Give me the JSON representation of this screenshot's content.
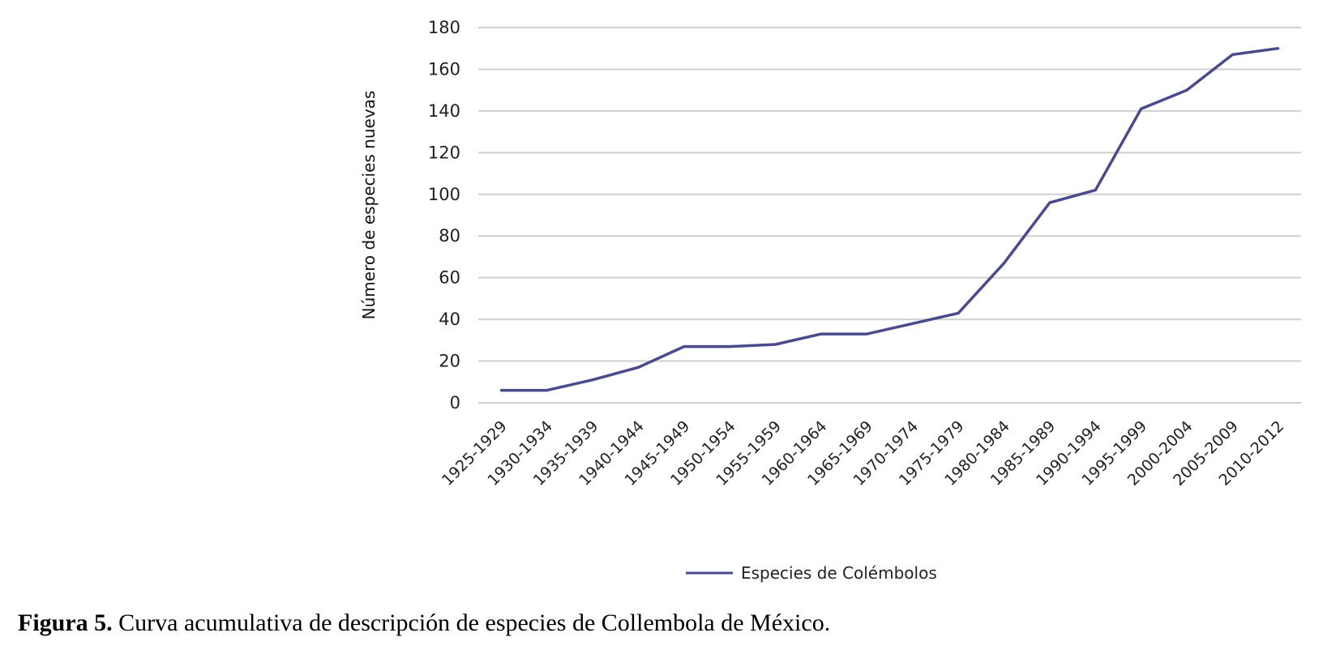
{
  "chart_data": {
    "type": "line",
    "categories": [
      "1925-1929",
      "1930-1934",
      "1935-1939",
      "1940-1944",
      "1945-1949",
      "1950-1954",
      "1955-1959",
      "1960-1964",
      "1965-1969",
      "1970-1974",
      "1975-1979",
      "1980-1984",
      "1985-1989",
      "1990-1994",
      "1995-1999",
      "2000-2004",
      "2005-2009",
      "2010-2012"
    ],
    "series": [
      {
        "name": "Especies de Colémbolos",
        "values": [
          6,
          6,
          11,
          17,
          27,
          27,
          28,
          33,
          33,
          38,
          43,
          67,
          96,
          102,
          141,
          150,
          167,
          170
        ]
      }
    ],
    "ylabel": "Número de especies nuevas",
    "xlabel": "",
    "ylim": [
      0,
      180
    ],
    "yticks": [
      0,
      20,
      40,
      60,
      80,
      100,
      120,
      140,
      160,
      180
    ],
    "grid": "horizontal",
    "legend_position": "bottom",
    "line_color": "#4a4a8c"
  },
  "caption": {
    "label": "Figura 5.",
    "text": " Curva acumulativa de descripción de especies de Collembola de México."
  }
}
